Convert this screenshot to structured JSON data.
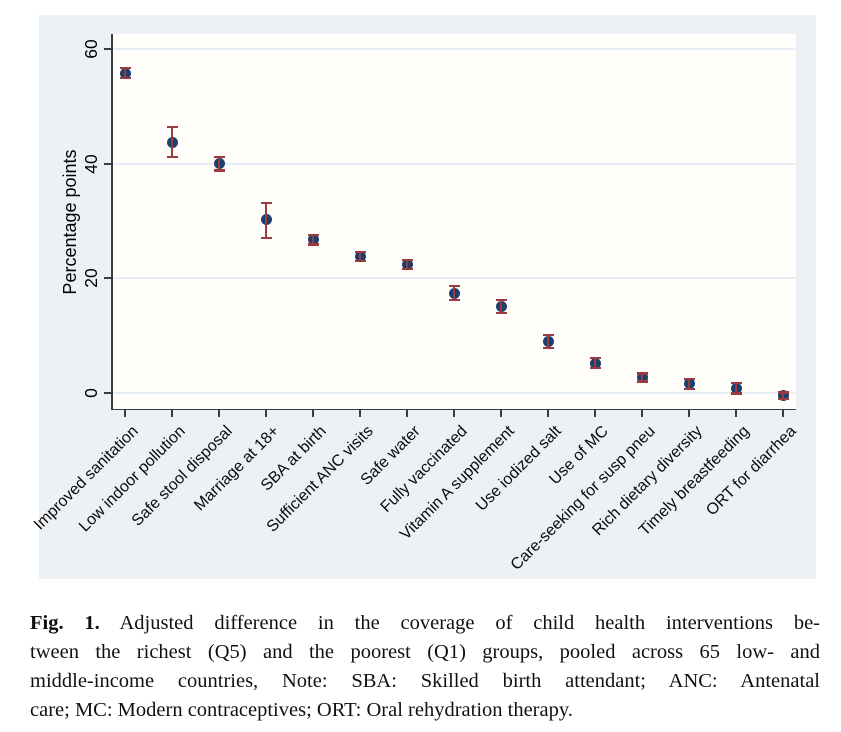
{
  "figure": {
    "caption": {
      "label": "Fig. 1.",
      "lines": [
        "Adjusted difference in the coverage of child health interventions be-",
        "tween the richest (Q5) and the poorest (Q1) groups, pooled across 65 low- and",
        "middle-income countries, Note: SBA: Skilled birth attendant; ANC: Antenatal",
        "care; MC: Modern contraceptives; ORT: Oral rehydration therapy."
      ]
    }
  },
  "chart_data": {
    "type": "scatter",
    "title": "",
    "xlabel": "",
    "ylabel": "Percentage points",
    "yticks": [
      0,
      20,
      40,
      60
    ],
    "ylim": [
      -3,
      62.5
    ],
    "grid": true,
    "legend": "none",
    "marker_color": "#1C3F6E",
    "error_bar_color": "#9A3B40",
    "background_color": "#EBF1F4",
    "plot_background_color": "#FFFEFB",
    "gridline_color": "#E8EEF6",
    "categories": [
      "Improved sanitation",
      "Low indoor pollution",
      "Safe stool disposal",
      "Marriage at 18+",
      "SBA at birth",
      "Sufficient ANC visits",
      "Safe water",
      "Fully vaccinated",
      "Vitamin A supplement",
      "Use iodized salt",
      "Use of MC",
      "Care-seeking for susp pneu",
      "Rich dietary diversity",
      "Timely breastfeeding",
      "ORT for diarrhea"
    ],
    "series": [
      {
        "values": [
          55.8,
          43.7,
          40.0,
          30.2,
          26.7,
          23.8,
          22.4,
          17.4,
          15.1,
          9.0,
          5.2,
          2.7,
          1.6,
          0.8,
          -0.5
        ],
        "ci_low": [
          54.9,
          41.2,
          38.8,
          27.1,
          25.9,
          23.0,
          21.6,
          16.2,
          14.0,
          7.9,
          4.3,
          2.0,
          0.7,
          -0.1,
          -1.1
        ],
        "ci_high": [
          56.7,
          46.4,
          41.2,
          33.2,
          27.5,
          24.6,
          23.2,
          18.6,
          16.2,
          10.1,
          6.1,
          3.4,
          2.5,
          1.7,
          0.1
        ]
      }
    ]
  }
}
